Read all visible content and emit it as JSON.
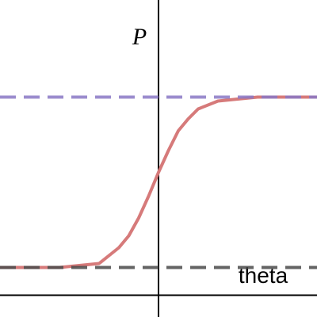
{
  "chart_data": {
    "type": "line",
    "ylabel": "P",
    "xlabel": "theta",
    "xlim": [
      -4,
      4
    ],
    "ylim": [
      -0.11,
      1.49
    ],
    "x": [
      -4,
      -3.5,
      -3,
      -2.5,
      -2,
      -1.5,
      -1,
      -0.75,
      -0.5,
      -0.25,
      0,
      0.25,
      0.5,
      0.75,
      1,
      1.5,
      2,
      2.5,
      3,
      3.5,
      4
    ],
    "series": [
      {
        "color": "#d67a7a",
        "values": [
          0.14,
          0.14,
          0.14,
          0.14,
          0.15,
          0.16,
          0.24,
          0.3,
          0.39,
          0.5,
          0.62,
          0.73,
          0.83,
          0.89,
          0.94,
          0.98,
          0.99,
          1.0,
          1.0,
          1.0,
          1.0
        ]
      }
    ],
    "hlines": [
      {
        "value": 1,
        "color": "#8a78c6"
      },
      {
        "value": 0.14,
        "color": "#4a4a4a"
      }
    ]
  }
}
